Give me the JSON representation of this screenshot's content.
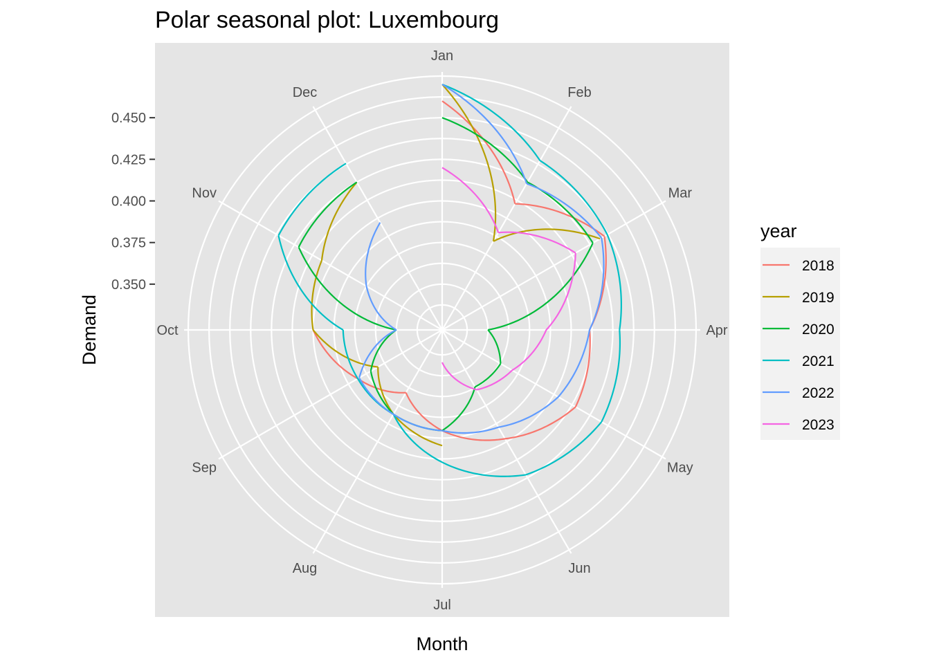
{
  "chart_data": {
    "type": "line",
    "coord": "polar",
    "title": "Polar seasonal plot: Luxembourg",
    "xlabel": "Month",
    "ylabel": "Demand",
    "categories": [
      "Jan",
      "Feb",
      "Mar",
      "Apr",
      "May",
      "Jun",
      "Jul",
      "Aug",
      "Sep",
      "Oct",
      "Nov",
      "Dec"
    ],
    "ytick_labels": [
      "0.350",
      "0.375",
      "0.400",
      "0.425",
      "0.450"
    ],
    "ytick_values": [
      0.35,
      0.375,
      0.4,
      0.425,
      0.45
    ],
    "ylim": [
      0.3225,
      0.4775
    ],
    "grid": true,
    "legend": {
      "title": "year",
      "position": "right"
    },
    "series": [
      {
        "name": "2018",
        "color": "#F8766D",
        "values": [
          0.46,
          0.41,
          0.435,
          0.411,
          0.415,
          0.398,
          0.383,
          0.366,
          0.381,
          0.4,
          null,
          null
        ]
      },
      {
        "name": "2019",
        "color": "#B79F00",
        "values": [
          0.47,
          0.384,
          0.432,
          null,
          null,
          null,
          0.392,
          0.381,
          0.367,
          0.4,
          0.406,
          0.425
        ]
      },
      {
        "name": "2020",
        "color": "#00BA38",
        "values": [
          0.45,
          0.425,
          0.427,
          0.35,
          0.363,
          0.362,
          0.383,
          0.381,
          0.372,
          0.35,
          0.422,
          0.425
        ]
      },
      {
        "name": "2021",
        "color": "#00BFC4",
        "values": [
          0.47,
          0.44,
          0.437,
          0.429,
          0.433,
          0.423,
          0.402,
          0.381,
          0.381,
          0.382,
          0.436,
          0.438
        ]
      },
      {
        "name": "2022",
        "color": "#619CFF",
        "values": [
          0.47,
          0.424,
          0.433,
          0.411,
          0.403,
          0.39,
          0.383,
          0.381,
          0.38,
          0.35,
          0.375,
          0.397
        ]
      },
      {
        "name": "2023",
        "color": "#F564E3",
        "values": [
          0.42,
          0.39,
          0.415,
          0.385,
          0.371,
          0.364,
          0.342,
          null,
          null,
          null,
          null,
          null
        ]
      }
    ]
  }
}
